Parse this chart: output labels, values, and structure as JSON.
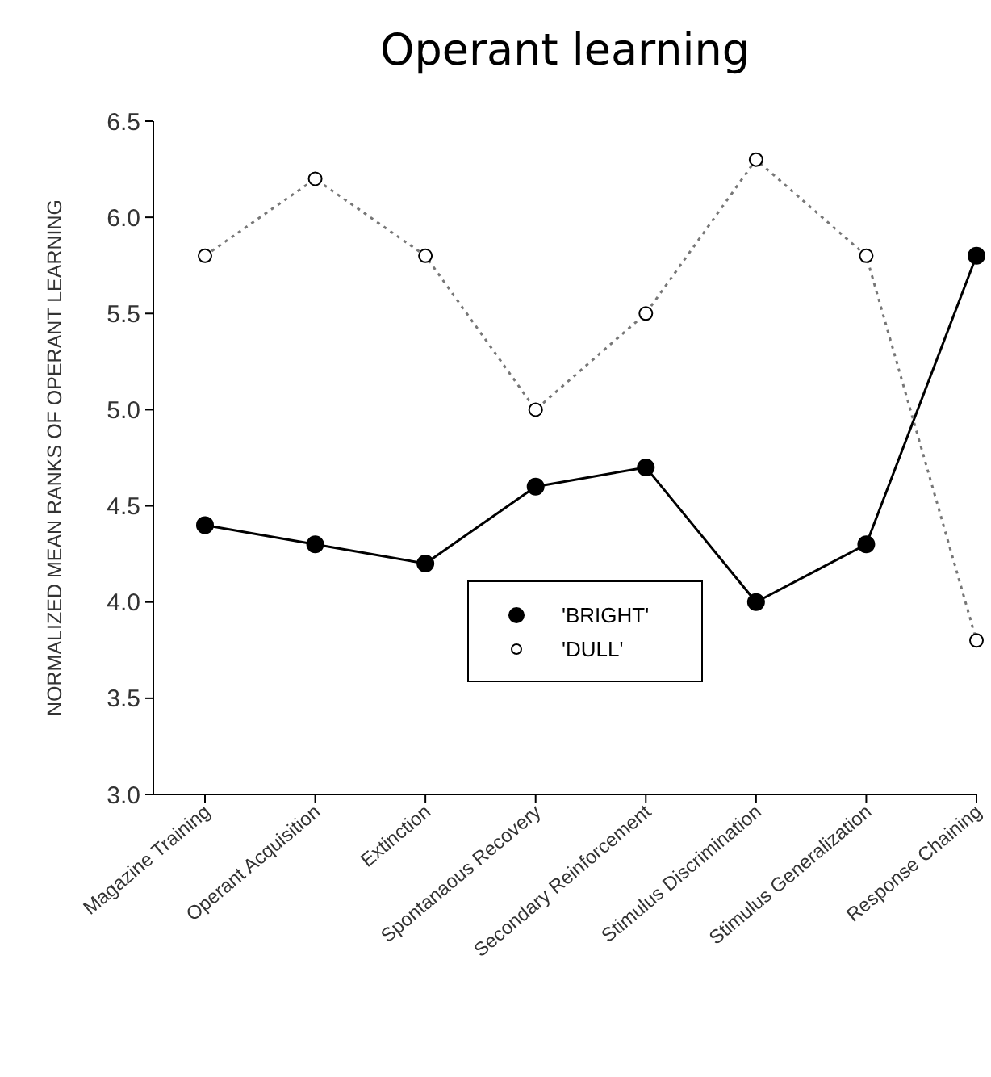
{
  "chart_data": {
    "type": "line",
    "title": "Operant learning",
    "ylabel": "NORMALIZED MEAN RANKS OF OPERANT LEARNING",
    "categories": [
      "Magazine Training",
      "Operant Acquisition",
      "Extinction",
      "Spontanaous Recovery",
      "Secondary Reinforcement",
      "Stimulus Discrimination",
      "Stimulus Generalization",
      "Response Chaining"
    ],
    "series": [
      {
        "name": "'BRIGHT'",
        "color": "#000000",
        "line_style": "solid",
        "values": [
          4.4,
          4.3,
          4.2,
          4.6,
          4.7,
          4.0,
          4.3,
          5.8
        ]
      },
      {
        "name": "'DULL'",
        "color": "#777777",
        "line_style": "dotted",
        "values": [
          5.8,
          6.2,
          5.8,
          5.0,
          5.5,
          6.3,
          5.8,
          3.8
        ]
      }
    ],
    "ylim": [
      3.0,
      6.5
    ],
    "yticks": [
      {
        "value": 3,
        "label": "3.0"
      },
      {
        "value": 3.5,
        "label": "3.5"
      },
      {
        "value": 4,
        "label": "4.0"
      },
      {
        "value": 4.5,
        "label": "4.5"
      },
      {
        "value": 5,
        "label": "5.0"
      },
      {
        "value": 5.5,
        "label": "5.5"
      },
      {
        "value": 6,
        "label": "6.0"
      },
      {
        "value": 6.5,
        "label": "6.5"
      }
    ],
    "marker": "circle",
    "legend": "bottom",
    "grid": false
  }
}
